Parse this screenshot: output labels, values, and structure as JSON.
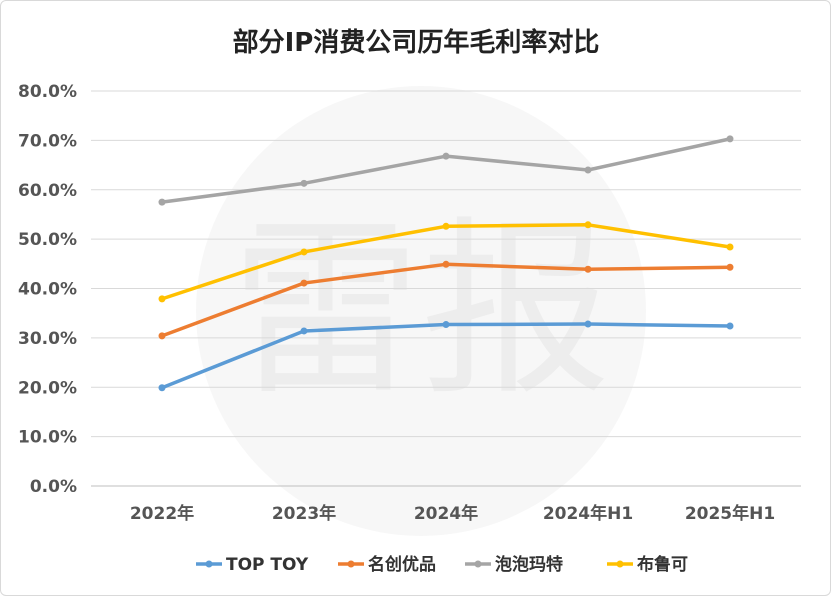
{
  "chart_data": {
    "type": "line",
    "title": "部分IP消费公司历年毛利率对比",
    "categories": [
      "2022年",
      "2023年",
      "2024年",
      "2024年H1",
      "2025年H1"
    ],
    "ylim": [
      0,
      80
    ],
    "ytick_labels": [
      "0.0%",
      "10.0%",
      "20.0%",
      "30.0%",
      "40.0%",
      "50.0%",
      "60.0%",
      "70.0%",
      "80.0%"
    ],
    "legend_position": "bottom",
    "grid": true,
    "series": [
      {
        "name": "TOP TOY",
        "color": "#5b9bd5",
        "values": [
          19.9,
          31.4,
          32.7,
          32.8,
          32.4
        ]
      },
      {
        "name": "名创优品",
        "color": "#ed7d31",
        "values": [
          30.4,
          41.1,
          44.9,
          43.9,
          44.3
        ]
      },
      {
        "name": "泡泡玛特",
        "color": "#a5a5a5",
        "values": [
          57.5,
          61.3,
          66.8,
          64.0,
          70.3
        ]
      },
      {
        "name": "布鲁可",
        "color": "#ffc000",
        "values": [
          37.9,
          47.4,
          52.6,
          52.9,
          48.4
        ]
      }
    ]
  },
  "watermark": {
    "text": "雷报"
  }
}
